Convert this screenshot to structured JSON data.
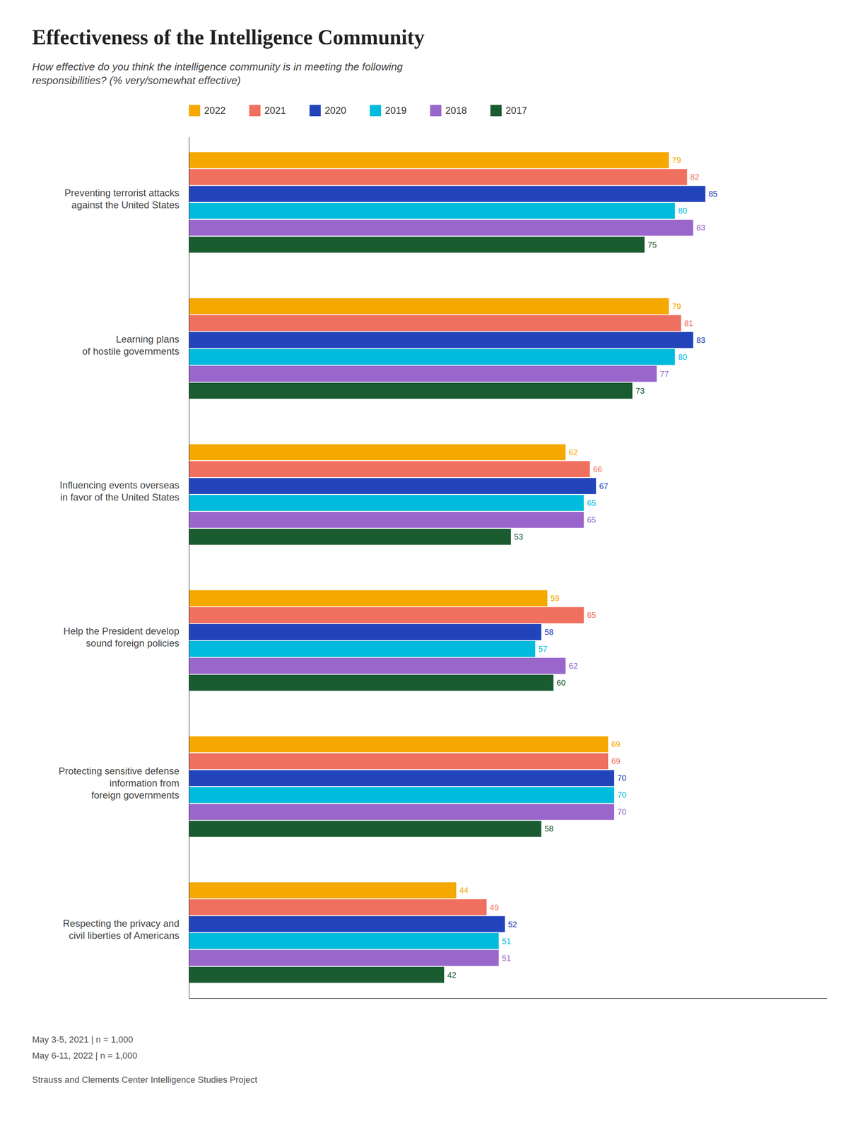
{
  "chart_data": {
    "type": "bar",
    "orientation": "horizontal",
    "title": "Effectiveness of the Intelligence Community",
    "subtitle": "How effective do you think the intelligence community is in meeting the following\nresponsibilities? (% very/somewhat effective)",
    "categories": [
      "Preventing terrorist attacks\nagainst the United States",
      "Learning plans\nof hostile governments",
      "Influencing events overseas\nin favor of the United States",
      "Help the President develop\nsound foreign policies",
      "Protecting sensitive defense\ninformation from\nforeign governments",
      "Respecting the privacy and\ncivil liberties of Americans"
    ],
    "series": [
      {
        "name": "2022",
        "color": "#f5a800",
        "values": [
          79,
          79,
          62,
          59,
          69,
          44
        ]
      },
      {
        "name": "2021",
        "color": "#f07060",
        "values": [
          82,
          81,
          66,
          65,
          69,
          49
        ]
      },
      {
        "name": "2020",
        "color": "#2244bb",
        "values": [
          85,
          83,
          67,
          58,
          70,
          52
        ]
      },
      {
        "name": "2019",
        "color": "#00bbdd",
        "values": [
          80,
          80,
          65,
          57,
          70,
          51
        ]
      },
      {
        "name": "2018",
        "color": "#9966cc",
        "values": [
          83,
          77,
          65,
          62,
          70,
          51
        ]
      },
      {
        "name": "2017",
        "color": "#1a5c30",
        "values": [
          75,
          73,
          53,
          60,
          58,
          42
        ]
      }
    ],
    "annotations": [
      "May 3-5, 2021 | n = 1,000",
      "May 6-11, 2022 | n = 1,000",
      "Strauss and Clements Center Intelligence Studies Project"
    ],
    "xlim": [
      0,
      105
    ],
    "data_labels": true,
    "tick_labels": false,
    "grid": false,
    "legend": "top"
  }
}
